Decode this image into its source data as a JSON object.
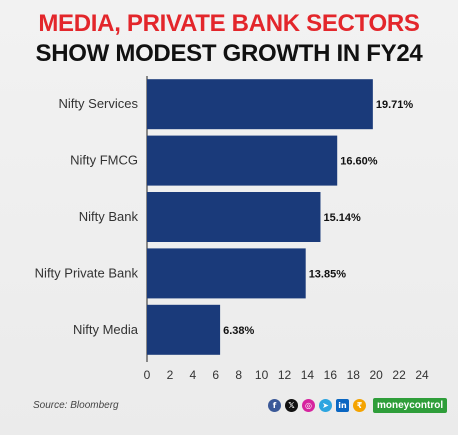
{
  "header": {
    "title_line1": "MEDIA, PRIVATE BANK SECTORS",
    "title_line2": "SHOW MODEST GROWTH IN FY24"
  },
  "footer": {
    "source": "Source: Bloomberg",
    "brand": "moneycontrol",
    "social_icons": [
      "facebook-icon",
      "x-icon",
      "instagram-icon",
      "telegram-icon",
      "linkedin-icon",
      "rupee-icon"
    ]
  },
  "colors": {
    "bar": "#1a3a7a",
    "title_accent": "#e3262b",
    "title_main": "#111111",
    "brand": "#2f9e3a"
  },
  "chart_data": {
    "type": "bar",
    "orientation": "horizontal",
    "categories": [
      "Nifty Services",
      "Nifty FMCG",
      "Nifty Bank",
      "Nifty Private Bank",
      "Nifty Media"
    ],
    "values": [
      19.71,
      16.6,
      15.14,
      13.85,
      6.38
    ],
    "value_labels": [
      "19.71%",
      "16.60%",
      "15.14%",
      "13.85%",
      "6.38%"
    ],
    "xlim": [
      0,
      24
    ],
    "xticks": [
      "0",
      "2",
      "4",
      "6",
      "8",
      "10",
      "12",
      "14",
      "16",
      "18",
      "20",
      "22",
      "24"
    ],
    "grid": false
  }
}
